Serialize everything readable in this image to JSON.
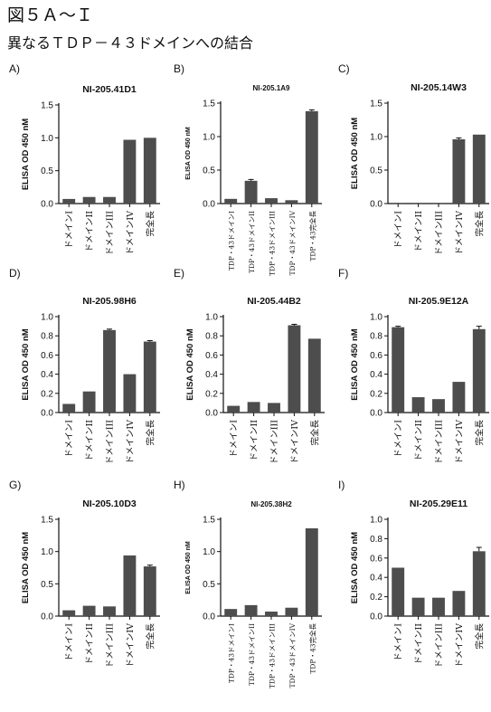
{
  "figure": {
    "title": "図５Ａ～Ｉ",
    "subtitle": "異なるＴＤＰ－４３ドメインへの結合"
  },
  "colors": {
    "bar": "#4d4d4d",
    "axis": "#111111"
  },
  "chart_data": [
    {
      "type": "bar",
      "panel": "A)",
      "title": "NI-205.41D1",
      "ylabel": "ELISA OD 450 nM",
      "ylim": [
        0,
        1.5
      ],
      "yticks": [
        "0.0",
        "0.5",
        "1.0",
        "1.5"
      ],
      "categories": [
        "ドメインI",
        "ドメインII",
        "ドメインIII",
        "ドメインIV",
        "完全長"
      ],
      "values": [
        0.07,
        0.1,
        0.1,
        0.97,
        1.0
      ],
      "errors": [
        0,
        0,
        0,
        0,
        0
      ]
    },
    {
      "type": "bar",
      "panel": "B)",
      "title": "NI-205.1A9",
      "ylabel": "ELISA OD 450 nM",
      "ylim": [
        0,
        1.5
      ],
      "yticks": [
        "0.0",
        "0.5",
        "1.0",
        "1.5"
      ],
      "categories": [
        "TDP・43ドメインI",
        "TDP・43ドメインII",
        "TDP・43ドメインIII",
        "TDP・43ドメインIV",
        "TDP・43完全長"
      ],
      "values": [
        0.07,
        0.34,
        0.08,
        0.05,
        1.38
      ],
      "errors": [
        0,
        0.02,
        0,
        0,
        0.02
      ]
    },
    {
      "type": "bar",
      "panel": "C)",
      "title": "NI-205.14W3",
      "ylabel": "ELISA OD 450 nM",
      "ylim": [
        0,
        1.5
      ],
      "yticks": [
        "0.0",
        "0.5",
        "1.0",
        "1.5"
      ],
      "categories": [
        "ドメインI",
        "ドメインII",
        "ドメインIII",
        "ドメインIV",
        "完全長"
      ],
      "values": [
        0.01,
        0.01,
        0.01,
        0.96,
        1.03
      ],
      "errors": [
        0,
        0,
        0,
        0.02,
        0
      ]
    },
    {
      "type": "bar",
      "panel": "D)",
      "title": "NI-205.98H6",
      "ylabel": "ELISA OD 450 nM",
      "ylim": [
        0,
        1.0
      ],
      "yticks": [
        "0.0",
        "0.2",
        "0.4",
        "0.6",
        "0.8",
        "1.0"
      ],
      "categories": [
        "ドメインI",
        "ドメインII",
        "ドメインIII",
        "ドメインIV",
        "完全長"
      ],
      "values": [
        0.09,
        0.22,
        0.86,
        0.4,
        0.74
      ],
      "errors": [
        0,
        0,
        0.01,
        0,
        0.01
      ]
    },
    {
      "type": "bar",
      "panel": "E)",
      "title": "NI-205.44B2",
      "ylabel": "ELISA OD 450 nM",
      "ylim": [
        0,
        1.0
      ],
      "yticks": [
        "0.0",
        "0.2",
        "0.4",
        "0.6",
        "0.8",
        "1.0"
      ],
      "categories": [
        "ドメインI",
        "ドメインII",
        "ドメインIII",
        "ドメインIV",
        "完全長"
      ],
      "values": [
        0.07,
        0.11,
        0.1,
        0.91,
        0.77
      ],
      "errors": [
        0,
        0,
        0,
        0.01,
        0
      ]
    },
    {
      "type": "bar",
      "panel": "F)",
      "title": "NI-205.9E12A",
      "ylabel": "ELISA OD 450 nM",
      "ylim": [
        0,
        1.0
      ],
      "yticks": [
        "0.0",
        "0.2",
        "0.4",
        "0.6",
        "0.8",
        "1.0"
      ],
      "categories": [
        "ドメインI",
        "ドメインII",
        "ドメインIII",
        "ドメインIV",
        "完全長"
      ],
      "values": [
        0.89,
        0.16,
        0.14,
        0.32,
        0.87
      ],
      "errors": [
        0.01,
        0,
        0,
        0,
        0.03
      ]
    },
    {
      "type": "bar",
      "panel": "G)",
      "title": "NI-205.10D3",
      "ylabel": "ELISA OD 450 nM",
      "ylim": [
        0,
        1.5
      ],
      "yticks": [
        "0.0",
        "0.5",
        "1.0",
        "1.5"
      ],
      "categories": [
        "ドメインI",
        "ドメインII",
        "ドメインIII",
        "ドメインIV",
        "完全長"
      ],
      "values": [
        0.09,
        0.16,
        0.15,
        0.94,
        0.77
      ],
      "errors": [
        0,
        0,
        0,
        0,
        0.02
      ]
    },
    {
      "type": "bar",
      "panel": "H)",
      "title": "NI-205.38H2",
      "ylabel": "ELISA OD 450 nM",
      "ylim": [
        0,
        1.5
      ],
      "yticks": [
        "0.0",
        "0.5",
        "1.0",
        "1.5"
      ],
      "categories": [
        "TDP・43ドメインI",
        "TDP・43ドメインII",
        "TDP・43ドメインIII",
        "TDP・43ドメインIV",
        "TDP・43完全長"
      ],
      "values": [
        0.11,
        0.17,
        0.07,
        0.13,
        1.36
      ],
      "errors": [
        0,
        0,
        0,
        0,
        0
      ]
    },
    {
      "type": "bar",
      "panel": "I)",
      "title": "NI-205.29E11",
      "ylabel": "ELISA OD 450 nM",
      "ylim": [
        0,
        1.0
      ],
      "yticks": [
        "0.0",
        "0.2",
        "0.4",
        "0.6",
        "0.8",
        "1.0"
      ],
      "categories": [
        "ドメインI",
        "ドメインII",
        "ドメインIII",
        "ドメインIV",
        "完全長"
      ],
      "values": [
        0.5,
        0.19,
        0.19,
        0.26,
        0.67
      ],
      "errors": [
        0,
        0,
        0,
        0,
        0.04
      ]
    }
  ]
}
